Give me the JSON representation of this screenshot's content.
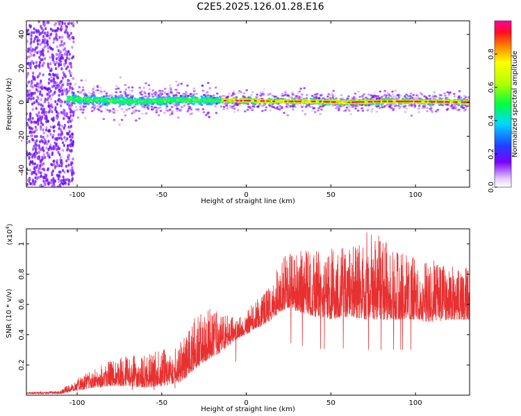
{
  "title": "C2E5.2025.126.01.28.E16",
  "colors": {
    "snr_line": "#e83030",
    "axis": "#000000"
  },
  "chart_data": [
    {
      "type": "heatmap",
      "xlabel": "Height of straight line (km)",
      "ylabel": "Frequency (Hz)",
      "xlim": [
        -130,
        132
      ],
      "ylim": [
        -50,
        48
      ],
      "xticks": [
        -100,
        -50,
        0,
        50,
        100
      ],
      "yticks": [
        -40,
        -20,
        0,
        20,
        40
      ],
      "colorbar": {
        "label": "Normalized spectral amplitude",
        "range": [
          0,
          1
        ],
        "ticks": [
          "0.0",
          "0.2",
          "0.4",
          "0.6",
          "0.8"
        ]
      },
      "ridge": {
        "description_points_x": [
          -105,
          -80,
          -60,
          -40,
          -20,
          -10,
          0,
          20,
          40,
          60,
          80,
          100,
          132
        ],
        "center_freq": [
          2,
          1,
          0.5,
          1.5,
          1,
          1,
          1,
          0.5,
          0.5,
          0,
          0.5,
          0.5,
          0
        ]
      }
    },
    {
      "type": "line",
      "xlabel": "Height of straight line (km)",
      "ylabel": "SNR (10 * v/v)",
      "y_multiplier": "(x10",
      "y_multiplier_exp": "4",
      "y_multiplier_close": ")",
      "xlim": [
        -130,
        132
      ],
      "ylim": [
        0,
        1.1
      ],
      "xticks": [
        -100,
        -50,
        0,
        50,
        100
      ],
      "yticks": [
        "0.2",
        "0.4",
        "0.6",
        "0.8",
        "1"
      ],
      "envelope": {
        "x": [
          -130,
          -110,
          -100,
          -90,
          -80,
          -70,
          -60,
          -50,
          -40,
          -35,
          -30,
          -25,
          -20,
          -15,
          -10,
          -5,
          0,
          5,
          10,
          15,
          20,
          25,
          30,
          35,
          40,
          50,
          60,
          70,
          80,
          90,
          100,
          110,
          120,
          132
        ],
        "base": [
          0.01,
          0.01,
          0.03,
          0.05,
          0.06,
          0.06,
          0.05,
          0.06,
          0.08,
          0.12,
          0.18,
          0.22,
          0.25,
          0.28,
          0.33,
          0.38,
          0.4,
          0.44,
          0.46,
          0.5,
          0.55,
          0.58,
          0.55,
          0.54,
          0.52,
          0.5,
          0.52,
          0.5,
          0.5,
          0.5,
          0.5,
          0.48,
          0.5,
          0.5
        ],
        "peak": [
          0.02,
          0.03,
          0.12,
          0.18,
          0.24,
          0.26,
          0.27,
          0.3,
          0.34,
          0.45,
          0.52,
          0.55,
          0.58,
          0.55,
          0.52,
          0.52,
          0.55,
          0.65,
          0.68,
          0.75,
          0.9,
          0.95,
          0.95,
          0.98,
          0.95,
          0.97,
          0.98,
          1.08,
          1.05,
          0.95,
          0.92,
          0.9,
          0.85,
          0.85
        ]
      }
    }
  ]
}
